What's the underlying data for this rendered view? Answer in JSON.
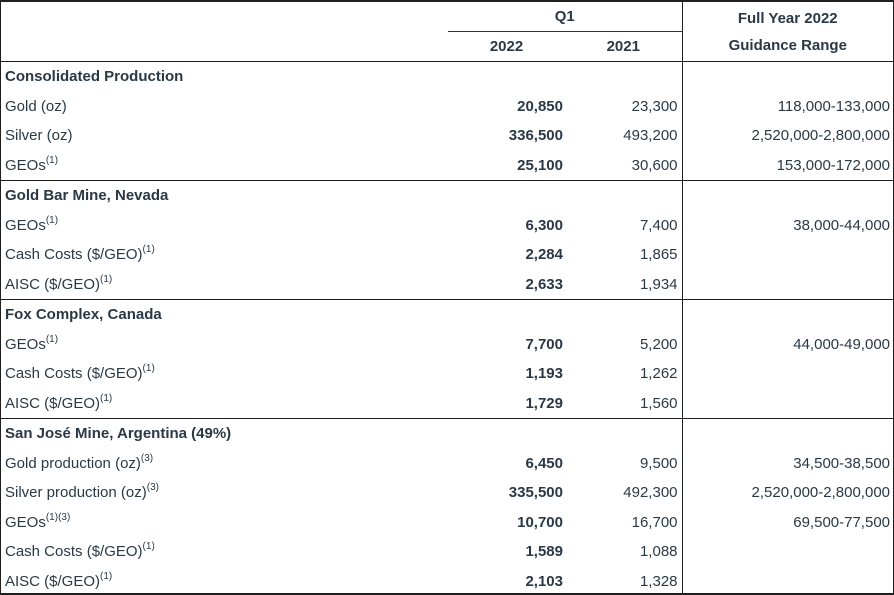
{
  "header": {
    "q1_label": "Q1",
    "col_2022": "2022",
    "col_2021": "2021",
    "guidance_line1": "Full Year 2022",
    "guidance_line2": "Guidance Range"
  },
  "sections": [
    {
      "title": "Consolidated Production",
      "rows": [
        {
          "label": "Gold (oz)",
          "sup": "",
          "v2022": "20,850",
          "v2021": "23,300",
          "guidance": "118,000-133,000"
        },
        {
          "label": "Silver (oz)",
          "sup": "",
          "v2022": "336,500",
          "v2021": "493,200",
          "guidance": "2,520,000-2,800,000"
        },
        {
          "label": "GEOs",
          "sup": "(1)",
          "v2022": "25,100",
          "v2021": "30,600",
          "guidance": "153,000-172,000"
        }
      ]
    },
    {
      "title": "Gold Bar Mine, Nevada",
      "rows": [
        {
          "label": "GEOs",
          "sup": "(1)",
          "v2022": "6,300",
          "v2021": "7,400",
          "guidance": "38,000-44,000"
        },
        {
          "label": "Cash Costs ($/GEO)",
          "sup": "(1)",
          "v2022": "2,284",
          "v2021": "1,865",
          "guidance": ""
        },
        {
          "label": "AISC ($/GEO)",
          "sup": "(1)",
          "v2022": "2,633",
          "v2021": "1,934",
          "guidance": ""
        }
      ]
    },
    {
      "title": "Fox Complex, Canada",
      "rows": [
        {
          "label": "GEOs",
          "sup": "(1)",
          "v2022": "7,700",
          "v2021": "5,200",
          "guidance": "44,000-49,000"
        },
        {
          "label": "Cash Costs ($/GEO)",
          "sup": "(1)",
          "v2022": "1,193",
          "v2021": "1,262",
          "guidance": ""
        },
        {
          "label": "AISC ($/GEO)",
          "sup": "(1)",
          "v2022": "1,729",
          "v2021": "1,560",
          "guidance": ""
        }
      ]
    },
    {
      "title": "San José Mine, Argentina (49%)",
      "rows": [
        {
          "label": "Gold production (oz)",
          "sup": "(3)",
          "v2022": "6,450",
          "v2021": "9,500",
          "guidance": "34,500-38,500"
        },
        {
          "label": "Silver production (oz)",
          "sup": "(3)",
          "v2022": "335,500",
          "v2021": "492,300",
          "guidance": "2,520,000-2,800,000"
        },
        {
          "label": "GEOs",
          "sup": "(1)(3)",
          "v2022": "10,700",
          "v2021": "16,700",
          "guidance": "69,500-77,500"
        },
        {
          "label": "Cash Costs ($/GEO)",
          "sup": "(1)",
          "v2022": "1,589",
          "v2021": "1,088",
          "guidance": ""
        },
        {
          "label": "AISC ($/GEO)",
          "sup": "(1)",
          "v2022": "2,103",
          "v2021": "1,328",
          "guidance": ""
        }
      ]
    }
  ],
  "colors": {
    "text": "#2b3845",
    "line_heavy": "#1f1f1f",
    "line_light": "#333333",
    "background": "#ffffff"
  }
}
